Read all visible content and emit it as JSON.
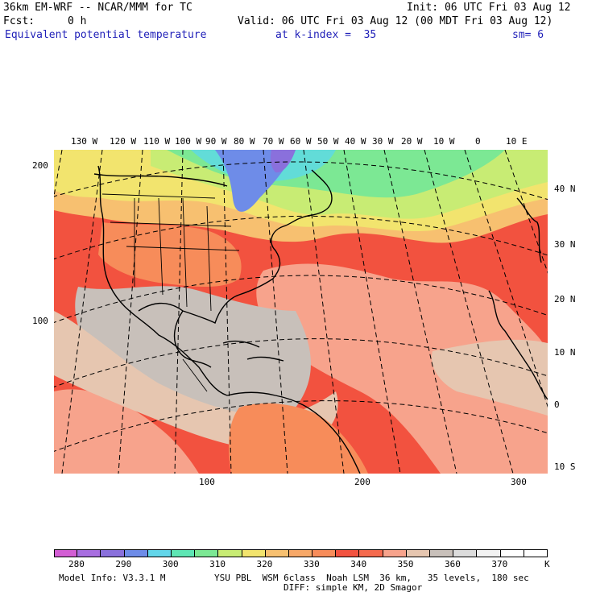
{
  "header": {
    "model_title": "36km EM-WRF -- NCAR/MMM for TC",
    "init": "Init: 06 UTC Fri 03 Aug 12",
    "fcst_label": "Fcst:",
    "fcst_value": "0 h",
    "valid": "Valid: 06 UTC Fri 03 Aug 12 (00 MDT Fri 03 Aug 12)",
    "field_name": "Equivalent potential temperature",
    "level": "at k-index =  35",
    "smoothing": "sm= 6"
  },
  "map": {
    "lon_labels": [
      "130 W",
      "120 W",
      "110 W",
      "100 W",
      "90 W",
      "80 W",
      "70 W",
      "60 W",
      "50 W",
      "40 W",
      "30 W",
      "20 W",
      "10 W",
      "0",
      "10 E"
    ],
    "lat_labels": [
      "40 N",
      "30 N",
      "20 N",
      "10 N",
      "0",
      "10 S"
    ],
    "grid_y_labels": [
      "200",
      "100"
    ],
    "grid_x_labels": [
      "100",
      "200",
      "300"
    ],
    "colors": {
      "ocean_warm": "#f2523f",
      "salmon": "#f7a38c",
      "tan": "#e6c6b0",
      "grey": "#c8c0ba",
      "orange": "#f78c5a",
      "yellow_orange": "#f7c070",
      "yellow": "#f2e46e",
      "green_yellow": "#c8ec74",
      "green": "#7ce894",
      "cyan": "#62dcd8",
      "blue": "#6e8ce8",
      "purple": "#8a70dc"
    }
  },
  "colorbar": {
    "labels": [
      "280",
      "290",
      "300",
      "310",
      "320",
      "330",
      "340",
      "350",
      "360",
      "370"
    ],
    "unit": "K",
    "colors": [
      "#d35ed4",
      "#a86ee0",
      "#8a70dc",
      "#6e8ce8",
      "#62d6ea",
      "#5ee6b4",
      "#7ce894",
      "#c8ec74",
      "#f2e46e",
      "#f7c070",
      "#f7a868",
      "#f78c5a",
      "#f2523f",
      "#f56a4e",
      "#f7a38c",
      "#e6c6b0",
      "#c8c0ba",
      "#dcdcdc",
      "#f2f2f2",
      "#ffffff",
      "#ffffff"
    ]
  },
  "footer": {
    "model_info": "Model Info: V3.3.1 M",
    "physics": "YSU PBL  WSM 6class  Noah LSM  36 km,   35 levels,  180 sec",
    "diffusion": "DIFF: simple KM, 2D Smagor"
  }
}
